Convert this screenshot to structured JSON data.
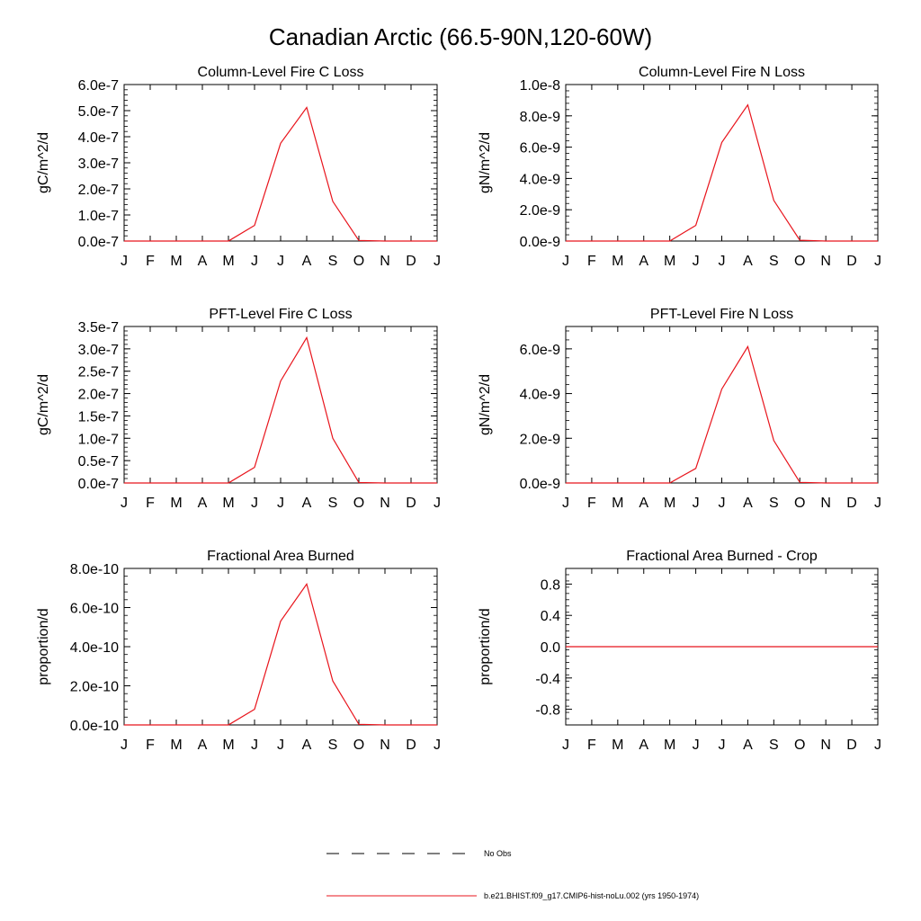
{
  "title": "Canadian Arctic (66.5-90N,120-60W)",
  "months": [
    "J",
    "F",
    "M",
    "A",
    "M",
    "J",
    "J",
    "A",
    "S",
    "O",
    "N",
    "D",
    "J"
  ],
  "colors": {
    "model": "#e8141c",
    "obs": "#000000",
    "axis": "#000000"
  },
  "legend": {
    "entries": [
      {
        "label": "No Obs",
        "style": "dashed",
        "color": "#000000"
      },
      {
        "label": "b.e21.BHIST.f09_g17.CMIP6-hist-noLu.002 (yrs 1950-1974)",
        "style": "solid",
        "color": "#e8141c"
      }
    ]
  },
  "chart_data": [
    {
      "type": "line",
      "title": "Column-Level Fire C Loss",
      "ylabel": "gC/m^2/d",
      "ylim": [
        0,
        6e-07
      ],
      "yticks": [
        0,
        1e-07,
        2e-07,
        3e-07,
        4e-07,
        5e-07,
        6e-07
      ],
      "ytick_labels": [
        "0.0e-7",
        "1.0e-7",
        "2.0e-7",
        "3.0e-7",
        "4.0e-7",
        "5.0e-7",
        "6.0e-7"
      ],
      "series": [
        {
          "name": "b.e21.BHIST.f09_g17.CMIP6-hist-noLu.002 (yrs 1950-1974)",
          "values": [
            0,
            0,
            0,
            0,
            0,
            6e-08,
            3.75e-07,
            5.12e-07,
            1.52e-07,
            2e-09,
            0,
            0,
            0
          ]
        }
      ]
    },
    {
      "type": "line",
      "title": "Column-Level Fire N Loss",
      "ylabel": "gN/m^2/d",
      "ylim": [
        0,
        1e-08
      ],
      "yticks": [
        0,
        2e-09,
        4e-09,
        6e-09,
        8e-09,
        1e-08
      ],
      "ytick_labels": [
        "0.0e-9",
        "2.0e-9",
        "4.0e-9",
        "6.0e-9",
        "8.0e-9",
        "1.0e-8"
      ],
      "series": [
        {
          "name": "b.e21.BHIST.f09_g17.CMIP6-hist-noLu.002 (yrs 1950-1974)",
          "values": [
            0,
            0,
            0,
            0,
            0,
            1e-09,
            6.3e-09,
            8.7e-09,
            2.6e-09,
            5e-11,
            0,
            0,
            0
          ]
        }
      ]
    },
    {
      "type": "line",
      "title": "PFT-Level Fire C Loss",
      "ylabel": "gC/m^2/d",
      "ylim": [
        0,
        3.5e-07
      ],
      "yticks": [
        0,
        5e-08,
        1e-07,
        1.5e-07,
        2e-07,
        2.5e-07,
        3e-07,
        3.5e-07
      ],
      "ytick_labels": [
        "0.0e-7",
        "0.5e-7",
        "1.0e-7",
        "1.5e-7",
        "2.0e-7",
        "2.5e-7",
        "3.0e-7",
        "3.5e-7"
      ],
      "series": [
        {
          "name": "b.e21.BHIST.f09_g17.CMIP6-hist-noLu.002 (yrs 1950-1974)",
          "values": [
            0,
            0,
            0,
            0,
            0,
            3.5e-08,
            2.28e-07,
            3.25e-07,
            1e-07,
            1e-09,
            0,
            0,
            0
          ]
        }
      ]
    },
    {
      "type": "line",
      "title": "PFT-Level Fire N Loss",
      "ylabel": "gN/m^2/d",
      "ylim": [
        0,
        7e-09
      ],
      "yticks": [
        0,
        2e-09,
        4e-09,
        6e-09
      ],
      "ytick_labels": [
        "0.0e-9",
        "2.0e-9",
        "4.0e-9",
        "6.0e-9"
      ],
      "series": [
        {
          "name": "b.e21.BHIST.f09_g17.CMIP6-hist-noLu.002 (yrs 1950-1974)",
          "values": [
            0,
            0,
            0,
            0,
            0,
            6.5e-10,
            4.2e-09,
            6.1e-09,
            1.9e-09,
            3e-11,
            0,
            0,
            0
          ]
        }
      ]
    },
    {
      "type": "line",
      "title": "Fractional Area Burned",
      "ylabel": "proportion/d",
      "ylim": [
        0,
        8e-10
      ],
      "yticks": [
        0,
        2e-10,
        4e-10,
        6e-10,
        8e-10
      ],
      "ytick_labels": [
        "0.0e-10",
        "2.0e-10",
        "4.0e-10",
        "6.0e-10",
        "8.0e-10"
      ],
      "series": [
        {
          "name": "b.e21.BHIST.f09_g17.CMIP6-hist-noLu.002 (yrs 1950-1974)",
          "values": [
            0,
            0,
            0,
            0,
            0,
            8e-11,
            5.3e-10,
            7.2e-10,
            2.25e-10,
            3e-12,
            0,
            0,
            0
          ]
        }
      ]
    },
    {
      "type": "line",
      "title": "Fractional Area Burned - Crop",
      "ylabel": "proportion/d",
      "ylim": [
        -1.0,
        1.0
      ],
      "yticks": [
        -0.8,
        -0.4,
        0,
        0.4,
        0.8
      ],
      "ytick_labels": [
        "-0.8",
        "-0.4",
        "0.0",
        "0.4",
        "0.8"
      ],
      "series": [
        {
          "name": "b.e21.BHIST.f09_g17.CMIP6-hist-noLu.002 (yrs 1950-1974)",
          "values": [
            0,
            0,
            0,
            0,
            0,
            0,
            0,
            0,
            0,
            0,
            0,
            0,
            0
          ]
        }
      ]
    }
  ]
}
